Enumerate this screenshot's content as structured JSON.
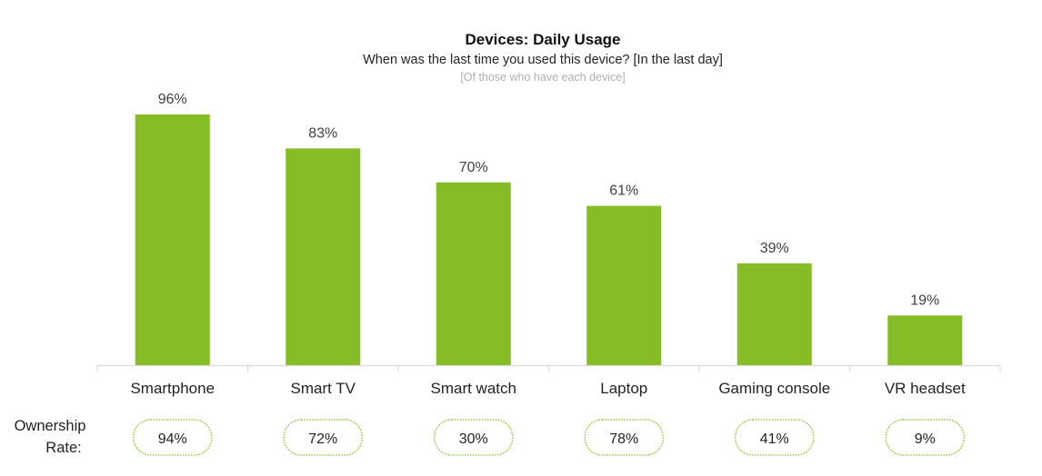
{
  "chart_data": {
    "type": "bar",
    "title": "Devices: Daily Usage",
    "subtitle": "When was the last time you used this device? [In the last day]",
    "note": "[Of those who have each device]",
    "xlabel": "",
    "ylabel": "",
    "ylim": [
      0,
      100
    ],
    "grid": false,
    "categories": [
      "Smartphone",
      "Smart TV",
      "Smart watch",
      "Laptop",
      "Gaming console",
      "VR headset"
    ],
    "values": [
      96,
      83,
      70,
      61,
      39,
      19
    ],
    "data_labels": [
      "96%",
      "83%",
      "70%",
      "61%",
      "39%",
      "19%"
    ],
    "bar_color": "#86BC25",
    "ownership": {
      "label_line1": "Ownership",
      "label_line2": "Rate:",
      "values": [
        "94%",
        "72%",
        "30%",
        "78%",
        "41%",
        "9%"
      ],
      "border_color": "#86BC25"
    }
  }
}
